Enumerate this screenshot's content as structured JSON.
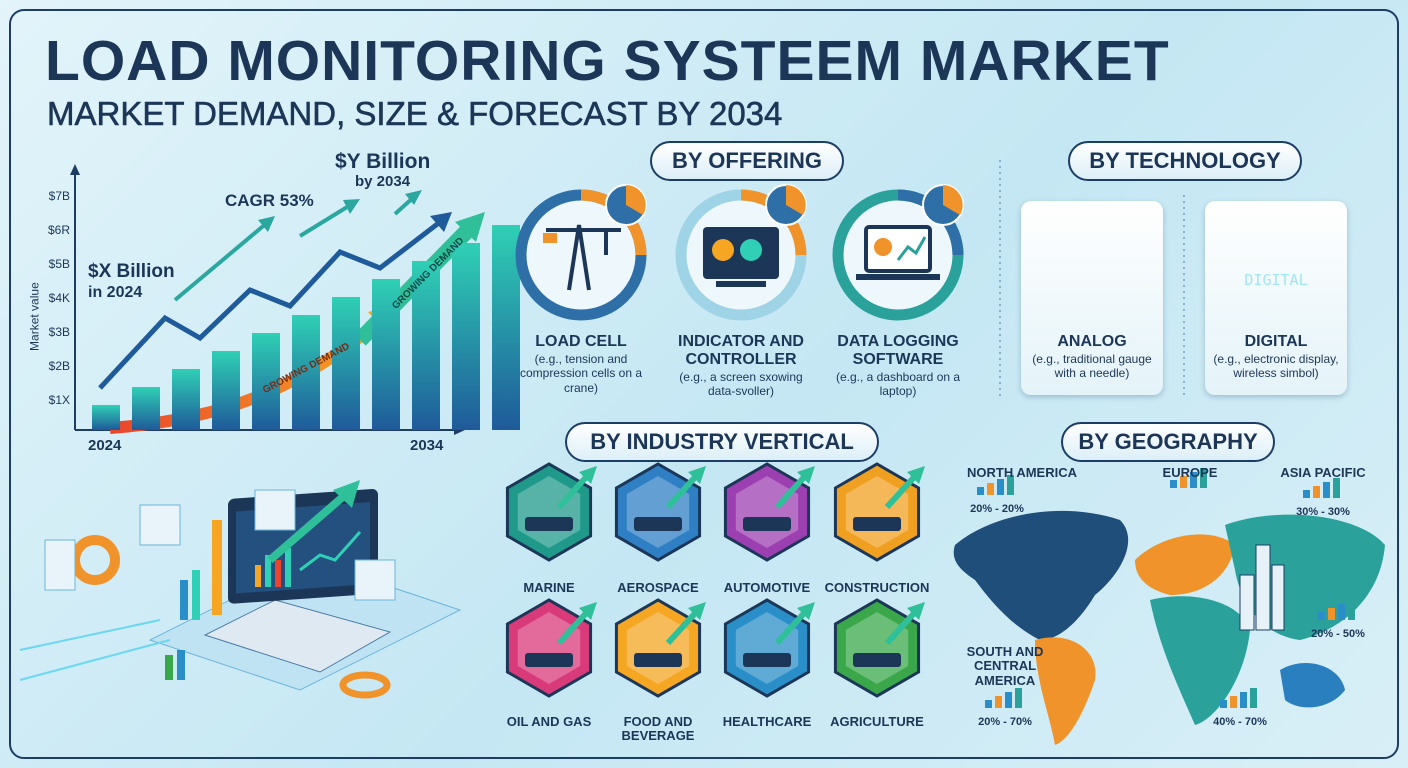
{
  "header": {
    "title": "LOAD MONITORING SYSTEEM MARKET",
    "subtitle": "MARKET DEMAND, SIZE & FORECAST BY 2034"
  },
  "growth": {
    "y_axis_label": "Market value",
    "y_tick_labels": [
      "$7B",
      "$6R",
      "$5B",
      "$4K",
      "$3B",
      "$2B",
      "$1X"
    ],
    "x_labels": [
      "2024",
      "2034"
    ],
    "start": "$X Billion",
    "start_year": "in 2024",
    "cagr": "CAGR 53%",
    "end": "$Y Billion",
    "end_year": "by 2034",
    "arrow_labels": [
      "GROWING DEMAND",
      "GROWING DEMAND"
    ]
  },
  "offering": {
    "title": "BY OFFERING",
    "items": [
      {
        "name": "LOAD CELL",
        "note": "(e.g., tension and compression cells on a crane)"
      },
      {
        "name": "INDICATOR AND CONTROLLER",
        "note": "(e.g., a screen sxowing data-svoller)"
      },
      {
        "name": "DATA LOGGING SOFTWARE",
        "note": "(e.g., a dashboard on a laptop)"
      }
    ]
  },
  "technology": {
    "title": "BY TECHNOLOGY",
    "items": [
      {
        "name": "ANALOG",
        "note": "(e.g., traditional gauge with a needle)"
      },
      {
        "name": "DIGITAL",
        "note": "(e.g., electronic display, wireless simbol)",
        "screen_text": "DIGITAL"
      }
    ]
  },
  "industry": {
    "title": "BY INDUSTRY VERTICAL",
    "items": [
      {
        "name": "MARINE"
      },
      {
        "name": "AEROSPACE"
      },
      {
        "name": "AUTOMOTIVE"
      },
      {
        "name": "CONSTRUCTION"
      },
      {
        "name": "OIL AND GAS"
      },
      {
        "name": "FOOD AND BEVERAGE"
      },
      {
        "name": "HEALTHCARE"
      },
      {
        "name": "AGRICULTURE"
      }
    ]
  },
  "geography": {
    "title": "BY GEOGRAPHY",
    "regions": [
      {
        "name": "NORTH AMERICA",
        "share": "20% - 20%"
      },
      {
        "name": "EUROPE"
      },
      {
        "name": "ASIA PACIFIC",
        "share": "30% - 30%"
      },
      {
        "share": "20% - 50%"
      },
      {
        "name": "SOUTH AND CENTRAL AMERICA",
        "share": "20% - 70%"
      },
      {
        "share": "40% - 70%"
      }
    ]
  }
}
